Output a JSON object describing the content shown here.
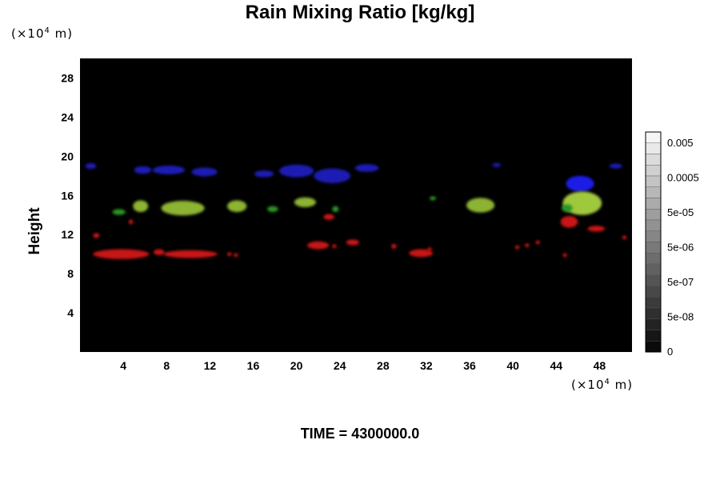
{
  "chart_data": {
    "type": "heatmap",
    "title": "Rain Mixing Ratio [kg/kg]",
    "ylabel": "Height",
    "xlabel": "",
    "x_unit": "(×10",
    "x_unit_exp": "4",
    "x_unit_suffix": " m)",
    "y_unit": "(×10",
    "y_unit_exp": "4",
    "y_unit_suffix": " m)",
    "footer": "TIME = 4300000.0",
    "xlim": [
      0,
      51
    ],
    "ylim": [
      0,
      30
    ],
    "x_ticks": [
      4,
      8,
      12,
      16,
      20,
      24,
      28,
      32,
      36,
      40,
      44,
      48
    ],
    "y_ticks": [
      4,
      8,
      12,
      16,
      20,
      24,
      28
    ],
    "background_color": "#000000",
    "colorbar": {
      "labels": [
        "0.005",
        "0.0005",
        "5e-05",
        "5e-06",
        "5e-07",
        "5e-08",
        "0"
      ],
      "levels": 20
    },
    "features": [
      {
        "layer": "upper",
        "color": "#1a1ab4",
        "x": 1.0,
        "y": 19.0,
        "w": 1.0,
        "h": 0.6
      },
      {
        "layer": "upper",
        "color": "#1a1ab4",
        "x": 5.8,
        "y": 18.6,
        "w": 1.6,
        "h": 0.8
      },
      {
        "layer": "upper",
        "color": "#1a1ab4",
        "x": 8.2,
        "y": 18.6,
        "w": 3.0,
        "h": 0.9
      },
      {
        "layer": "upper",
        "color": "#1a1ab4",
        "x": 11.5,
        "y": 18.4,
        "w": 2.4,
        "h": 0.9
      },
      {
        "layer": "upper",
        "color": "#1a1ab4",
        "x": 17.0,
        "y": 18.2,
        "w": 1.8,
        "h": 0.7
      },
      {
        "layer": "upper",
        "color": "#1a1ab4",
        "x": 20.0,
        "y": 18.5,
        "w": 3.2,
        "h": 1.3
      },
      {
        "layer": "upper",
        "color": "#1a1ab4",
        "x": 23.3,
        "y": 18.0,
        "w": 3.4,
        "h": 1.5
      },
      {
        "layer": "upper",
        "color": "#1a1ab4",
        "x": 26.5,
        "y": 18.8,
        "w": 2.2,
        "h": 0.8
      },
      {
        "layer": "upper",
        "color": "#1a1ab4",
        "x": 38.5,
        "y": 19.1,
        "w": 0.8,
        "h": 0.4
      },
      {
        "layer": "upper",
        "color": "#1a1ab4",
        "x": 49.5,
        "y": 19.0,
        "w": 1.2,
        "h": 0.5
      },
      {
        "layer": "upper",
        "color": "#1a1ae6",
        "x": 46.2,
        "y": 17.2,
        "w": 2.6,
        "h": 1.6
      },
      {
        "layer": "middle",
        "color": "#8cb432",
        "x": 5.6,
        "y": 14.9,
        "w": 1.4,
        "h": 1.2
      },
      {
        "layer": "middle",
        "color": "#8cb432",
        "x": 9.5,
        "y": 14.7,
        "w": 4.0,
        "h": 1.5
      },
      {
        "layer": "middle",
        "color": "#8cb432",
        "x": 14.5,
        "y": 14.9,
        "w": 1.8,
        "h": 1.2
      },
      {
        "layer": "middle",
        "color": "#8cb432",
        "x": 20.8,
        "y": 15.3,
        "w": 2.0,
        "h": 1.0
      },
      {
        "layer": "middle",
        "color": "#8cb432",
        "x": 37.0,
        "y": 15.0,
        "w": 2.6,
        "h": 1.5
      },
      {
        "layer": "middle",
        "color": "#a0c83c",
        "x": 46.4,
        "y": 15.2,
        "w": 3.6,
        "h": 2.4
      },
      {
        "layer": "middle",
        "color": "#2a9620",
        "x": 3.6,
        "y": 14.3,
        "w": 1.2,
        "h": 0.6
      },
      {
        "layer": "middle",
        "color": "#2a9620",
        "x": 17.8,
        "y": 14.6,
        "w": 1.0,
        "h": 0.6
      },
      {
        "layer": "middle",
        "color": "#2a9620",
        "x": 23.6,
        "y": 14.6,
        "w": 0.6,
        "h": 0.6
      },
      {
        "layer": "middle",
        "color": "#2a9620",
        "x": 32.6,
        "y": 15.7,
        "w": 0.6,
        "h": 0.4
      },
      {
        "layer": "middle",
        "color": "#2a9620",
        "x": 45.0,
        "y": 14.7,
        "w": 1.0,
        "h": 0.8
      },
      {
        "layer": "lower",
        "color": "#c81414",
        "x": 3.8,
        "y": 10.0,
        "w": 5.2,
        "h": 1.0
      },
      {
        "layer": "lower",
        "color": "#c81414",
        "x": 10.2,
        "y": 10.0,
        "w": 5.0,
        "h": 0.8
      },
      {
        "layer": "lower",
        "color": "#c81414",
        "x": 7.3,
        "y": 10.2,
        "w": 1.0,
        "h": 0.6
      },
      {
        "layer": "lower",
        "color": "#c81414",
        "x": 1.5,
        "y": 11.9,
        "w": 0.6,
        "h": 0.5
      },
      {
        "layer": "lower",
        "color": "#c81414",
        "x": 4.7,
        "y": 13.3,
        "w": 0.4,
        "h": 0.5
      },
      {
        "layer": "lower",
        "color": "#c81414",
        "x": 13.8,
        "y": 10.0,
        "w": 0.4,
        "h": 0.4
      },
      {
        "layer": "lower",
        "color": "#c81414",
        "x": 14.4,
        "y": 9.9,
        "w": 0.4,
        "h": 0.4
      },
      {
        "layer": "lower",
        "color": "#c81414",
        "x": 22.0,
        "y": 10.9,
        "w": 2.0,
        "h": 0.8
      },
      {
        "layer": "lower",
        "color": "#c81414",
        "x": 23.5,
        "y": 10.8,
        "w": 0.4,
        "h": 0.4
      },
      {
        "layer": "lower",
        "color": "#c81414",
        "x": 25.2,
        "y": 11.2,
        "w": 1.2,
        "h": 0.6
      },
      {
        "layer": "lower",
        "color": "#c81414",
        "x": 29.0,
        "y": 10.8,
        "w": 0.5,
        "h": 0.5
      },
      {
        "layer": "lower",
        "color": "#c81414",
        "x": 31.5,
        "y": 10.1,
        "w": 2.2,
        "h": 0.8
      },
      {
        "layer": "lower",
        "color": "#c81414",
        "x": 32.3,
        "y": 10.5,
        "w": 0.4,
        "h": 0.4
      },
      {
        "layer": "lower",
        "color": "#c81414",
        "x": 40.4,
        "y": 10.7,
        "w": 0.4,
        "h": 0.4
      },
      {
        "layer": "lower",
        "color": "#c81414",
        "x": 41.3,
        "y": 10.9,
        "w": 0.4,
        "h": 0.4
      },
      {
        "layer": "lower",
        "color": "#c81414",
        "x": 42.3,
        "y": 11.2,
        "w": 0.4,
        "h": 0.4
      },
      {
        "layer": "lower",
        "color": "#c81414",
        "x": 45.2,
        "y": 13.3,
        "w": 1.6,
        "h": 1.2
      },
      {
        "layer": "lower",
        "color": "#c81414",
        "x": 47.7,
        "y": 12.6,
        "w": 1.6,
        "h": 0.6
      },
      {
        "layer": "lower",
        "color": "#c81414",
        "x": 50.3,
        "y": 11.7,
        "w": 0.4,
        "h": 0.4
      },
      {
        "layer": "lower",
        "color": "#c81414",
        "x": 44.8,
        "y": 9.9,
        "w": 0.4,
        "h": 0.4
      },
      {
        "layer": "lower",
        "color": "#c81414",
        "x": 23.0,
        "y": 13.8,
        "w": 1.0,
        "h": 0.6
      }
    ]
  }
}
